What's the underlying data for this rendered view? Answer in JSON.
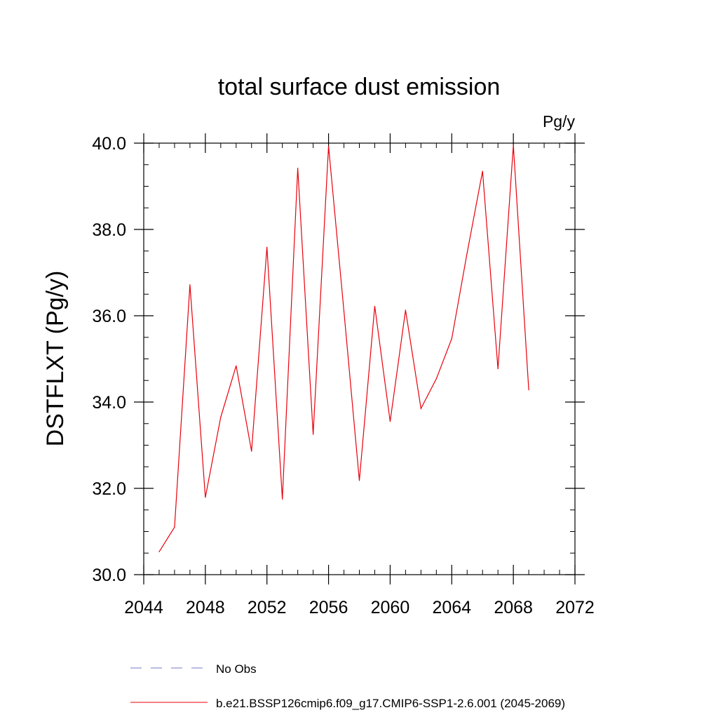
{
  "chart_data": {
    "type": "line",
    "title": "total surface dust emission",
    "units_label": "Pg/y",
    "ylabel": "DSTFLXT  (Pg/y)",
    "xlabel": "",
    "xlim": [
      2044,
      2072
    ],
    "ylim": [
      30.0,
      40.0
    ],
    "x_major_ticks": [
      2044,
      2048,
      2052,
      2056,
      2060,
      2064,
      2068,
      2072
    ],
    "x_tick_labels": [
      "2044",
      "2048",
      "2052",
      "2056",
      "2060",
      "2064",
      "2068",
      "2072"
    ],
    "x_minor_step": 1,
    "y_major_ticks": [
      30.0,
      32.0,
      34.0,
      36.0,
      38.0,
      40.0
    ],
    "y_tick_labels": [
      "30.0",
      "32.0",
      "34.0",
      "36.0",
      "38.0",
      "40.0"
    ],
    "y_minor_step": 0.5,
    "grid": false,
    "series": [
      {
        "name": "b.e21.BSSP126cmip6.f09_g17.CMIP6-SSP1-2.6.001 (2045-2069)",
        "color": "#e8000b",
        "x": [
          2045,
          2046,
          2047,
          2048,
          2049,
          2050,
          2051,
          2052,
          2053,
          2054,
          2055,
          2056,
          2057,
          2058,
          2059,
          2060,
          2061,
          2062,
          2063,
          2064,
          2065,
          2066,
          2067,
          2068,
          2069
        ],
        "values": [
          30.53,
          31.1,
          36.72,
          31.79,
          33.65,
          34.84,
          32.86,
          37.59,
          31.75,
          39.42,
          33.25,
          39.93,
          36.1,
          32.18,
          36.22,
          33.55,
          36.13,
          33.85,
          34.54,
          35.47,
          37.46,
          39.35,
          34.77,
          39.95,
          34.28
        ]
      }
    ],
    "legend": [
      {
        "label": "No Obs",
        "color": "#7777cc",
        "style": "dashed"
      },
      {
        "label": "b.e21.BSSP126cmip6.f09_g17.CMIP6-SSP1-2.6.001 (2045-2069)",
        "color": "#e8000b",
        "style": "solid"
      }
    ],
    "legend_position": "bottom-center"
  }
}
